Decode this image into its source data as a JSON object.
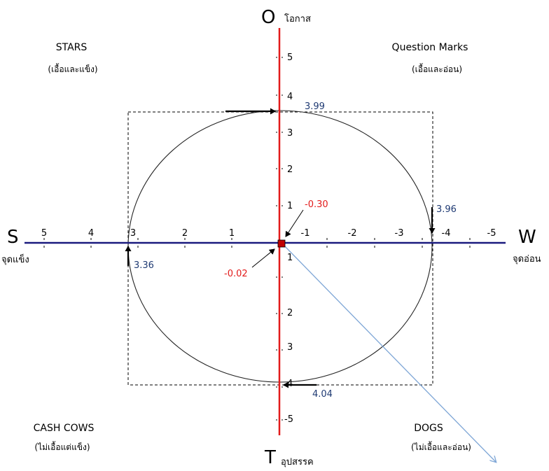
{
  "axes": {
    "top": {
      "letter": "O",
      "label": "โอกาส"
    },
    "bottom": {
      "letter": "T",
      "label": "อุปสรรค"
    },
    "left": {
      "letter": "S",
      "label": "จุดแข็ง"
    },
    "right": {
      "letter": "W",
      "label": "จุดอ่อน"
    }
  },
  "quadrants": {
    "top_left": {
      "title": "STARS",
      "subtitle": "(เอื้อและแข็ง)"
    },
    "top_right": {
      "title": "Question Marks",
      "subtitle": "(เอื้อและอ่อน)"
    },
    "bottom_left": {
      "title": "CASH COWS",
      "subtitle": "(ไม่เอื้อแต่แข็ง)"
    },
    "bottom_right": {
      "title": "DOGS",
      "subtitle": "(ไม่เอื้อและอ่อน)"
    }
  },
  "ticks": {
    "x": [
      {
        "value": 5,
        "label": "5"
      },
      {
        "value": 4,
        "label": "4"
      },
      {
        "value": 3,
        "label": "3"
      },
      {
        "value": 2,
        "label": "2"
      },
      {
        "value": 1,
        "label": "1"
      },
      {
        "value": -1,
        "label": "-1"
      },
      {
        "value": -2,
        "label": "-2"
      },
      {
        "value": -3,
        "label": "-3"
      },
      {
        "value": -4,
        "label": "-4"
      },
      {
        "value": -5,
        "label": "-5"
      }
    ],
    "y_up": [
      {
        "value": 5,
        "label": "5"
      },
      {
        "value": 4,
        "label": "4"
      },
      {
        "value": 3,
        "label": "3"
      },
      {
        "value": 2,
        "label": "2"
      },
      {
        "value": 1,
        "label": "1"
      }
    ],
    "y_down": [
      {
        "value": -1,
        "label": "1"
      },
      {
        "value": -2,
        "label": "2"
      },
      {
        "value": -3,
        "label": "3"
      },
      {
        "value": -4,
        "label": "4"
      },
      {
        "value": -5,
        "label": "-5"
      }
    ]
  },
  "values": {
    "opportunity": "3.99",
    "weakness": "3.96",
    "strength": "3.36",
    "threat": "4.04",
    "result_y": "-0.30",
    "result_x": "-0.02"
  },
  "colors": {
    "vertical_axis": "#e21b1b",
    "horizontal_axis": "#1a1a7e",
    "vector": "#7ea6d6",
    "value_blue": "#1f3a73",
    "value_red": "#e21b1b"
  }
}
